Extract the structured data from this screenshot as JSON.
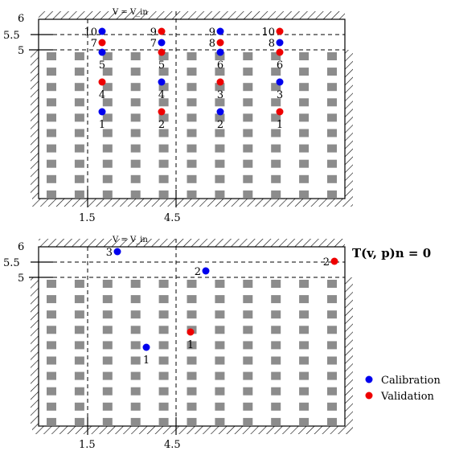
{
  "colors": {
    "calibration": "#0000ee",
    "validation": "#ee0000",
    "obstacle": "#8c8c8c"
  },
  "panels": [
    {
      "y_ticks": [
        "6",
        "5.5",
        "5"
      ],
      "x_ticks": [
        "1.5",
        "4.5"
      ],
      "inlet_label": "V = V_in",
      "points": [
        {
          "set": "calibration",
          "label": "10"
        },
        {
          "set": "validation",
          "label": "7"
        },
        {
          "set": "calibration",
          "label": "5"
        },
        {
          "set": "validation",
          "label": "4"
        },
        {
          "set": "calibration",
          "label": "1"
        },
        {
          "set": "validation",
          "label": "9"
        },
        {
          "set": "calibration",
          "label": "7"
        },
        {
          "set": "validation",
          "label": "5"
        },
        {
          "set": "calibration",
          "label": "4"
        },
        {
          "set": "validation",
          "label": "2"
        },
        {
          "set": "calibration",
          "label": "9"
        },
        {
          "set": "validation",
          "label": "8"
        },
        {
          "set": "calibration",
          "label": "6"
        },
        {
          "set": "validation",
          "label": "3"
        },
        {
          "set": "calibration",
          "label": "2"
        },
        {
          "set": "validation",
          "label": "10"
        },
        {
          "set": "calibration",
          "label": "8"
        },
        {
          "set": "validation",
          "label": "6"
        },
        {
          "set": "calibration",
          "label": "3"
        },
        {
          "set": "validation",
          "label": "1"
        }
      ]
    },
    {
      "y_ticks": [
        "6",
        "5.5",
        "5"
      ],
      "x_ticks": [
        "1.5",
        "4.5"
      ],
      "inlet_label": "V = V_in",
      "points": [
        {
          "set": "calibration",
          "label": "3"
        },
        {
          "set": "calibration",
          "label": "2"
        },
        {
          "set": "validation",
          "label": "2"
        },
        {
          "set": "validation",
          "label": "1"
        },
        {
          "set": "calibration",
          "label": "1"
        }
      ]
    }
  ],
  "outlet_bc": "T(v, p)n = 0",
  "legend": [
    {
      "set": "calibration",
      "label": "Calibration"
    },
    {
      "set": "validation",
      "label": "Validation"
    }
  ]
}
